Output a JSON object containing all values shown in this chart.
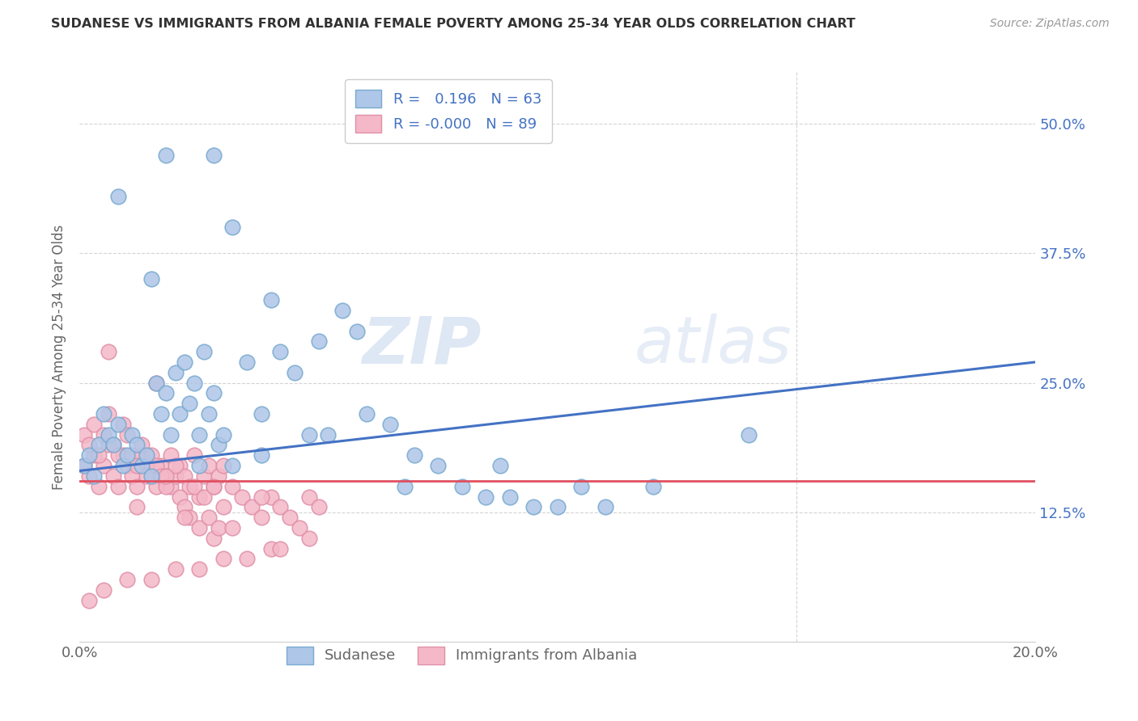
{
  "title": "SUDANESE VS IMMIGRANTS FROM ALBANIA FEMALE POVERTY AMONG 25-34 YEAR OLDS CORRELATION CHART",
  "source": "Source: ZipAtlas.com",
  "ylabel": "Female Poverty Among 25-34 Year Olds",
  "watermark_zip": "ZIP",
  "watermark_atlas": "atlas",
  "series": [
    {
      "name": "Sudanese",
      "R": 0.196,
      "N": 63,
      "marker_color": "#aec6e8",
      "marker_edge": "#7aaad0",
      "line_color": "#4472c4"
    },
    {
      "name": "Immigrants from Albania",
      "R": -0.0,
      "N": 89,
      "marker_color": "#f4b8c8",
      "marker_edge": "#e090a8",
      "line_color": "#e05060"
    }
  ],
  "xlim": [
    0.0,
    0.2
  ],
  "ylim": [
    0.0,
    0.55
  ],
  "xtick_positions": [
    0.0,
    0.05,
    0.1,
    0.15,
    0.2
  ],
  "xticklabels": [
    "0.0%",
    "",
    "",
    "",
    "20.0%"
  ],
  "ytick_positions": [
    0.0,
    0.125,
    0.25,
    0.375,
    0.5
  ],
  "yticklabels": [
    "",
    "12.5%",
    "25.0%",
    "37.5%",
    "50.0%"
  ],
  "grid_color": "#d0d0d0",
  "background_color": "#ffffff",
  "title_color": "#333333",
  "axis_color": "#666666",
  "blue_tick_color": "#4472c4",
  "sudanese_x": [
    0.001,
    0.002,
    0.003,
    0.004,
    0.005,
    0.006,
    0.007,
    0.008,
    0.009,
    0.01,
    0.011,
    0.012,
    0.013,
    0.014,
    0.015,
    0.016,
    0.017,
    0.018,
    0.019,
    0.02,
    0.021,
    0.022,
    0.023,
    0.024,
    0.025,
    0.026,
    0.027,
    0.028,
    0.029,
    0.03,
    0.032,
    0.035,
    0.038,
    0.04,
    0.042,
    0.045,
    0.048,
    0.052,
    0.055,
    0.058,
    0.06,
    0.065,
    0.068,
    0.07,
    0.075,
    0.08,
    0.085,
    0.088,
    0.09,
    0.095,
    0.1,
    0.105,
    0.11,
    0.12,
    0.14,
    0.028,
    0.018,
    0.008,
    0.032,
    0.015,
    0.05,
    0.038,
    0.025
  ],
  "sudanese_y": [
    0.17,
    0.18,
    0.16,
    0.19,
    0.22,
    0.2,
    0.19,
    0.21,
    0.17,
    0.18,
    0.2,
    0.19,
    0.17,
    0.18,
    0.16,
    0.25,
    0.22,
    0.24,
    0.2,
    0.26,
    0.22,
    0.27,
    0.23,
    0.25,
    0.17,
    0.28,
    0.22,
    0.24,
    0.19,
    0.2,
    0.17,
    0.27,
    0.18,
    0.33,
    0.28,
    0.26,
    0.2,
    0.2,
    0.32,
    0.3,
    0.22,
    0.21,
    0.15,
    0.18,
    0.17,
    0.15,
    0.14,
    0.17,
    0.14,
    0.13,
    0.13,
    0.15,
    0.13,
    0.15,
    0.2,
    0.47,
    0.47,
    0.43,
    0.4,
    0.35,
    0.29,
    0.22,
    0.2
  ],
  "albania_x": [
    0.001,
    0.002,
    0.003,
    0.004,
    0.005,
    0.006,
    0.007,
    0.008,
    0.009,
    0.01,
    0.011,
    0.012,
    0.013,
    0.014,
    0.015,
    0.016,
    0.017,
    0.018,
    0.019,
    0.02,
    0.021,
    0.022,
    0.023,
    0.024,
    0.025,
    0.026,
    0.027,
    0.028,
    0.029,
    0.03,
    0.001,
    0.002,
    0.003,
    0.004,
    0.005,
    0.006,
    0.007,
    0.008,
    0.009,
    0.01,
    0.011,
    0.012,
    0.013,
    0.014,
    0.015,
    0.016,
    0.017,
    0.018,
    0.019,
    0.02,
    0.021,
    0.022,
    0.023,
    0.024,
    0.025,
    0.026,
    0.027,
    0.028,
    0.029,
    0.03,
    0.032,
    0.034,
    0.036,
    0.038,
    0.04,
    0.042,
    0.044,
    0.046,
    0.048,
    0.05,
    0.035,
    0.025,
    0.015,
    0.04,
    0.03,
    0.02,
    0.01,
    0.005,
    0.002,
    0.018,
    0.028,
    0.038,
    0.048,
    0.012,
    0.022,
    0.032,
    0.042,
    0.006,
    0.016
  ],
  "albania_y": [
    0.17,
    0.16,
    0.18,
    0.15,
    0.17,
    0.19,
    0.16,
    0.15,
    0.18,
    0.17,
    0.16,
    0.15,
    0.18,
    0.17,
    0.16,
    0.15,
    0.17,
    0.16,
    0.15,
    0.16,
    0.17,
    0.16,
    0.15,
    0.18,
    0.14,
    0.16,
    0.17,
    0.15,
    0.16,
    0.17,
    0.2,
    0.19,
    0.21,
    0.18,
    0.2,
    0.22,
    0.19,
    0.18,
    0.21,
    0.2,
    0.18,
    0.17,
    0.19,
    0.16,
    0.18,
    0.17,
    0.16,
    0.15,
    0.18,
    0.17,
    0.14,
    0.13,
    0.12,
    0.15,
    0.11,
    0.14,
    0.12,
    0.1,
    0.11,
    0.13,
    0.15,
    0.14,
    0.13,
    0.12,
    0.14,
    0.13,
    0.12,
    0.11,
    0.14,
    0.13,
    0.08,
    0.07,
    0.06,
    0.09,
    0.08,
    0.07,
    0.06,
    0.05,
    0.04,
    0.16,
    0.15,
    0.14,
    0.1,
    0.13,
    0.12,
    0.11,
    0.09,
    0.28,
    0.25
  ],
  "trendline_sudanese": [
    [
      0.0,
      0.2
    ],
    [
      0.165,
      0.27
    ]
  ],
  "trendline_albania": [
    [
      0.0,
      0.2
    ],
    [
      0.155,
      0.155
    ]
  ]
}
